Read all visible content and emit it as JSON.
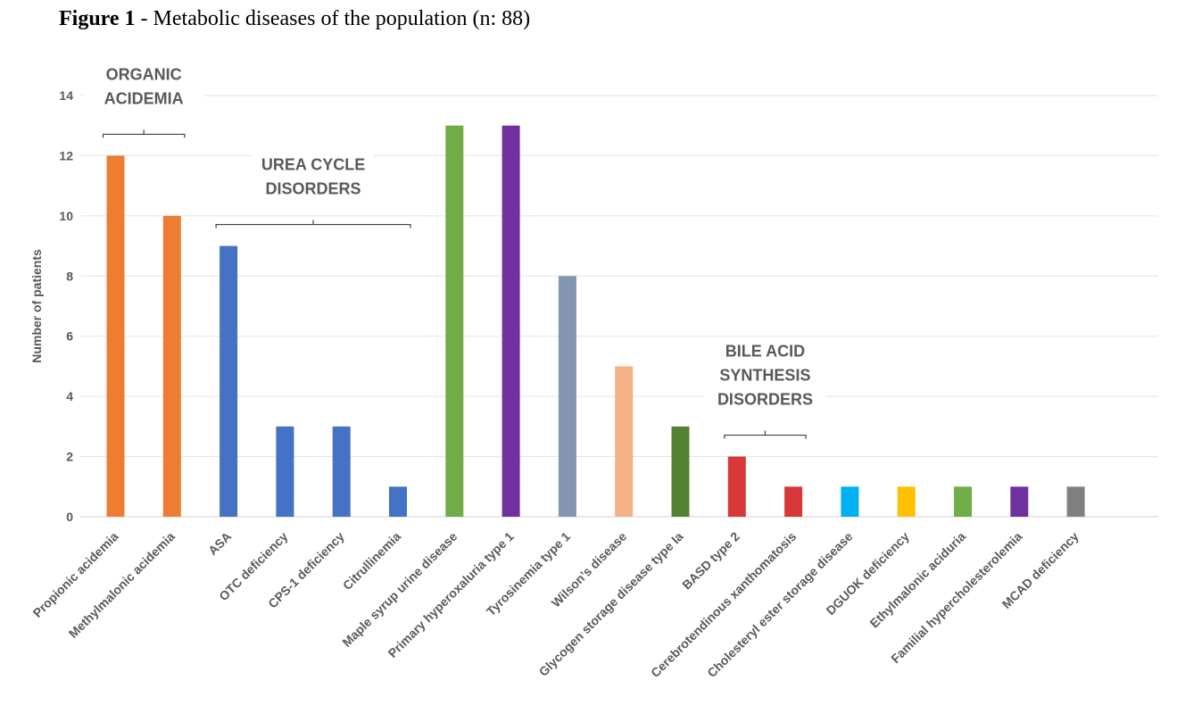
{
  "figure": {
    "label": "Figure 1",
    "title": " - Metabolic diseases of the population (n: 88)"
  },
  "chart_data": {
    "type": "bar",
    "ylabel": "Number of patients",
    "xlabel": "",
    "ylim": [
      0,
      14
    ],
    "yticks": [
      0,
      2,
      4,
      6,
      8,
      10,
      12,
      14
    ],
    "grid": true,
    "categories": [
      "Propionic acidemia",
      "Methylmalonic acidemia",
      "ASA",
      "OTC deficiency",
      "CPS-1 deficiency",
      "Citrullinemia",
      "Maple syrup urine disease",
      "Primary hyperoxaluria type 1",
      "Tyrosinemia type 1",
      "Wilson’s disease",
      "Glycogen storage disease type Ia",
      "BASD type 2",
      "Cerebrotendinous xanthomatosis",
      "Cholesteryl ester storage disease",
      "DGUOK deficiency",
      "Ethylmalonic aciduria",
      "Familial hypercholesterolemia",
      "MCAD deficiency"
    ],
    "values": [
      12,
      10,
      9,
      3,
      3,
      1,
      13,
      13,
      8,
      5,
      3,
      2,
      1,
      1,
      1,
      1,
      1,
      1
    ],
    "colors": [
      "#ed7d31",
      "#ed7d31",
      "#4472c4",
      "#4472c4",
      "#4472c4",
      "#4472c4",
      "#70ad47",
      "#7030a0",
      "#8497b0",
      "#f4b183",
      "#548235",
      "#d9383a",
      "#d9383a",
      "#00b0f0",
      "#ffc000",
      "#70ad47",
      "#7030a0",
      "#808080"
    ],
    "groups": [
      {
        "lines": [
          "ORGANIC",
          "ACIDEMIA"
        ],
        "from": 0,
        "to": 1
      },
      {
        "lines": [
          "UREA CYCLE",
          "DISORDERS"
        ],
        "from": 2,
        "to": 5
      },
      {
        "lines": [
          "BILE ACID",
          "SYNTHESIS",
          "DISORDERS"
        ],
        "from": 11,
        "to": 12
      }
    ]
  }
}
